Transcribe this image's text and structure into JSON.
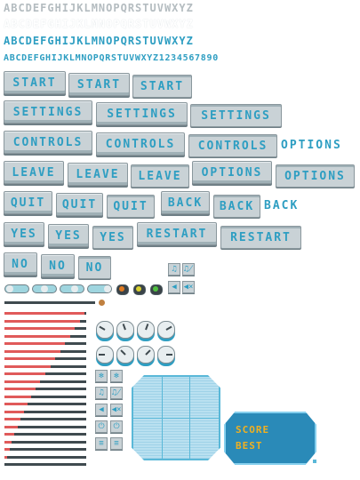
{
  "alphabet": {
    "gray_upper": "ABCDEFGHIJKLMNOPQRSTUVWXYZ",
    "white_upper": "ABCDEFGHIJKLMNOPQRSTUVWXYZ",
    "blue_upper": "ABCDEFGHIJKLMNOPQRSTUVWXYZ",
    "blue_full": "ABCDEFGHIJKLMNOPQRSTUVWXYZ1234567890"
  },
  "buttons": {
    "start": "START",
    "settings": "SETTINGS",
    "controls": "CONTROLS",
    "options": "OPTIONS",
    "leave": "LEAVE",
    "quit": "QUIT",
    "back": "BACK",
    "yes": "YES",
    "restart": "RESTART",
    "no": "NO"
  },
  "icons": {
    "music": "♫",
    "music_off": "♫̸",
    "sound": "◀",
    "sound_off": "◀×",
    "gear": "✻",
    "power": "⏻",
    "menu": "≡"
  },
  "score_panel": {
    "score_label": "SCORE",
    "best_label": "BEST"
  },
  "progress_bars": [
    0.98,
    0.92,
    0.86,
    0.8,
    0.74,
    0.68,
    0.62,
    0.56,
    0.5,
    0.44,
    0.38,
    0.33,
    0.28,
    0.24,
    0.2,
    0.16,
    0.12,
    0.09,
    0.06,
    0.03,
    0.0
  ],
  "colors": {
    "accent": "#2e9ec2",
    "bar_fill": "#e05a5a",
    "led_orange": "#e07a20",
    "led_yellow": "#d8d030",
    "led_green": "#50c040",
    "score_gold": "#f0b020"
  }
}
